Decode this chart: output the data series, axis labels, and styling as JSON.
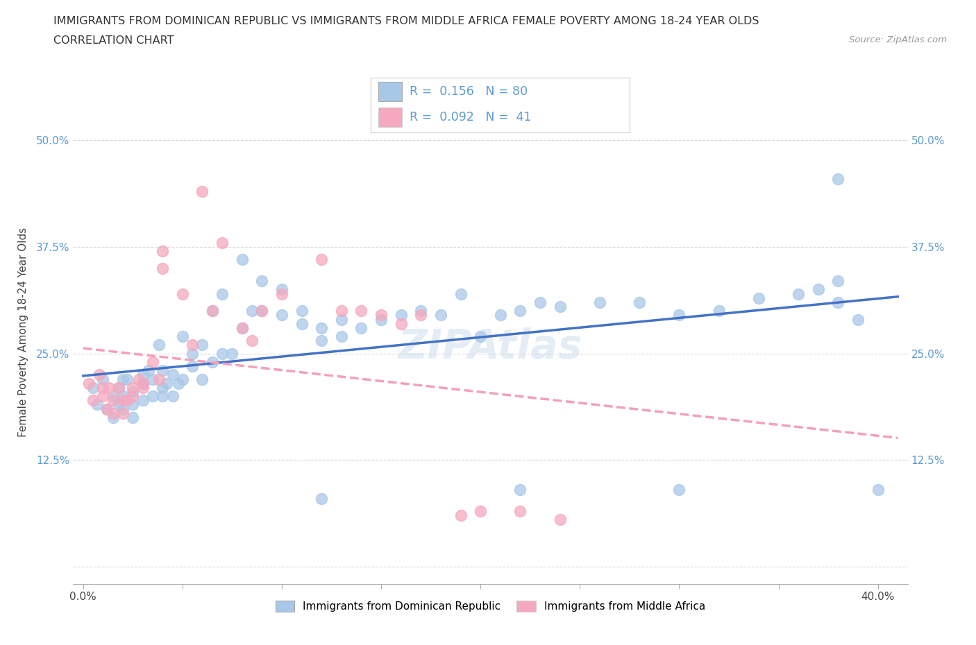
{
  "title_line1": "IMMIGRANTS FROM DOMINICAN REPUBLIC VS IMMIGRANTS FROM MIDDLE AFRICA FEMALE POVERTY AMONG 18-24 YEAR OLDS",
  "title_line2": "CORRELATION CHART",
  "source_text": "Source: ZipAtlas.com",
  "ylabel": "Female Poverty Among 18-24 Year Olds",
  "xlim": [
    -0.005,
    0.415
  ],
  "ylim": [
    -0.02,
    0.57
  ],
  "yticks": [
    0.0,
    0.125,
    0.25,
    0.375,
    0.5
  ],
  "ytick_labels_left": [
    "",
    "12.5%",
    "25.0%",
    "37.5%",
    "50.0%"
  ],
  "ytick_labels_right": [
    "",
    "12.5%",
    "25.0%",
    "37.5%",
    "50.0%"
  ],
  "xticks": [
    0.0,
    0.05,
    0.1,
    0.15,
    0.2,
    0.25,
    0.3,
    0.35,
    0.4
  ],
  "xtick_labels": [
    "0.0%",
    "",
    "",
    "",
    "",
    "",
    "",
    "",
    "40.0%"
  ],
  "legend_r1": "R =  0.156   N = 80",
  "legend_r2": "R =  0.092   N =  41",
  "series1_color": "#a8c8e8",
  "series2_color": "#f5a8be",
  "trendline1_color": "#4472c4",
  "trendline2_color": "#f4a0b8",
  "legend1_label": "Immigrants from Dominican Republic",
  "legend2_label": "Immigrants from Middle Africa",
  "blue_x": [
    0.005,
    0.007,
    0.01,
    0.012,
    0.015,
    0.015,
    0.018,
    0.018,
    0.02,
    0.02,
    0.02,
    0.022,
    0.025,
    0.025,
    0.025,
    0.03,
    0.03,
    0.03,
    0.03,
    0.033,
    0.035,
    0.035,
    0.038,
    0.04,
    0.04,
    0.04,
    0.042,
    0.045,
    0.045,
    0.048,
    0.05,
    0.05,
    0.055,
    0.055,
    0.06,
    0.06,
    0.065,
    0.065,
    0.07,
    0.07,
    0.075,
    0.08,
    0.08,
    0.085,
    0.09,
    0.09,
    0.1,
    0.1,
    0.11,
    0.11,
    0.12,
    0.12,
    0.13,
    0.13,
    0.14,
    0.15,
    0.16,
    0.17,
    0.18,
    0.19,
    0.2,
    0.21,
    0.22,
    0.23,
    0.24,
    0.26,
    0.28,
    0.3,
    0.32,
    0.34,
    0.36,
    0.37,
    0.38,
    0.38,
    0.39,
    0.4,
    0.12,
    0.22,
    0.3,
    0.38
  ],
  "blue_y": [
    0.21,
    0.19,
    0.22,
    0.185,
    0.2,
    0.175,
    0.21,
    0.19,
    0.22,
    0.2,
    0.185,
    0.22,
    0.205,
    0.19,
    0.175,
    0.215,
    0.225,
    0.195,
    0.215,
    0.23,
    0.22,
    0.2,
    0.26,
    0.21,
    0.23,
    0.2,
    0.215,
    0.225,
    0.2,
    0.215,
    0.22,
    0.27,
    0.235,
    0.25,
    0.22,
    0.26,
    0.24,
    0.3,
    0.25,
    0.32,
    0.25,
    0.28,
    0.36,
    0.3,
    0.3,
    0.335,
    0.295,
    0.325,
    0.3,
    0.285,
    0.28,
    0.265,
    0.29,
    0.27,
    0.28,
    0.29,
    0.295,
    0.3,
    0.295,
    0.32,
    0.27,
    0.295,
    0.3,
    0.31,
    0.305,
    0.31,
    0.31,
    0.295,
    0.3,
    0.315,
    0.32,
    0.325,
    0.335,
    0.31,
    0.29,
    0.09,
    0.08,
    0.09,
    0.09,
    0.455
  ],
  "pink_x": [
    0.003,
    0.005,
    0.008,
    0.01,
    0.01,
    0.012,
    0.013,
    0.015,
    0.015,
    0.018,
    0.02,
    0.02,
    0.022,
    0.025,
    0.025,
    0.028,
    0.03,
    0.03,
    0.035,
    0.038,
    0.04,
    0.04,
    0.05,
    0.055,
    0.06,
    0.065,
    0.07,
    0.08,
    0.085,
    0.09,
    0.1,
    0.12,
    0.13,
    0.14,
    0.15,
    0.16,
    0.17,
    0.19,
    0.2,
    0.22,
    0.24
  ],
  "pink_y": [
    0.215,
    0.195,
    0.225,
    0.21,
    0.2,
    0.185,
    0.21,
    0.195,
    0.18,
    0.21,
    0.195,
    0.18,
    0.195,
    0.21,
    0.2,
    0.22,
    0.215,
    0.21,
    0.24,
    0.22,
    0.37,
    0.35,
    0.32,
    0.26,
    0.44,
    0.3,
    0.38,
    0.28,
    0.265,
    0.3,
    0.32,
    0.36,
    0.3,
    0.3,
    0.295,
    0.285,
    0.295,
    0.06,
    0.065,
    0.065,
    0.055
  ],
  "watermark_text": "ZIPAtlas",
  "background_color": "#ffffff"
}
